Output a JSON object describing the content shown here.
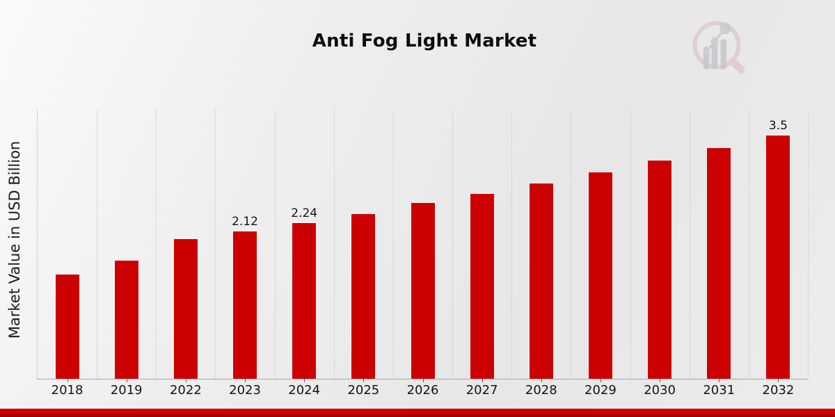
{
  "title": "Anti Fog Light Market",
  "y_axis_label": "Market Value in USD Billion",
  "chart_data": {
    "type": "bar",
    "title": "Anti Fog Light Market",
    "xlabel": "",
    "ylabel": "Market Value in USD Billion",
    "categories": [
      "2018",
      "2019",
      "2022",
      "2023",
      "2024",
      "2025",
      "2026",
      "2027",
      "2028",
      "2029",
      "2030",
      "2031",
      "2032"
    ],
    "values": [
      1.5,
      1.7,
      2.01,
      2.12,
      2.24,
      2.37,
      2.53,
      2.66,
      2.81,
      2.97,
      3.14,
      3.32,
      3.5
    ],
    "bar_labels": [
      "",
      "",
      "",
      "2.12",
      "2.24",
      "",
      "",
      "",
      "",
      "",
      "",
      "",
      "3.5"
    ],
    "ylim": [
      0,
      3.87
    ],
    "grid": "vertical-dotted",
    "legend": "none",
    "bar_color": "#cc0000",
    "accent_color": "#c00000",
    "background_color": "#ececec"
  },
  "logo": {
    "name": "magnifier-bar-chart-watermark",
    "ring_color": "#d9b6b6",
    "bars_color": "#c5c5c9"
  }
}
